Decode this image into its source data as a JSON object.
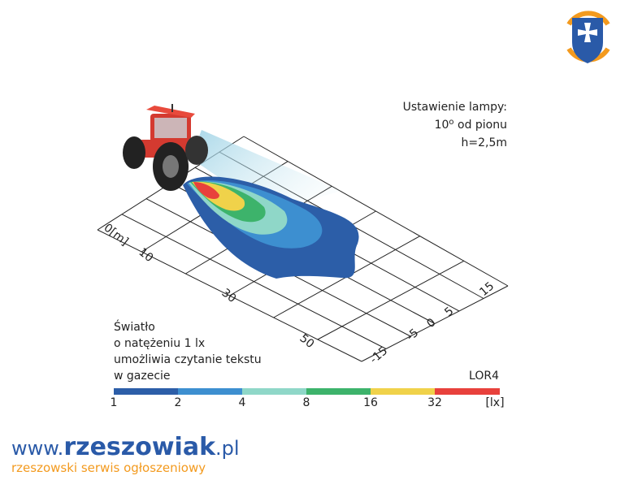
{
  "setting": {
    "title": "Ustawienie lampy:",
    "angle_value": "10",
    "angle_sign": "o",
    "angle_rest": " od pionu",
    "height": "h=2,5m"
  },
  "distance_axis": {
    "labels": [
      "0[m]",
      "10",
      "30",
      "50"
    ]
  },
  "lateral_axis": {
    "labels": [
      "15",
      "5",
      "0",
      "-5",
      "-15"
    ]
  },
  "note": {
    "lines": [
      "Światło",
      "o natężeniu 1 lx",
      "umożliwia czytanie tekstu",
      "w gazecie"
    ]
  },
  "model": "LOR4",
  "scale": {
    "labels": [
      "1",
      "2",
      "4",
      "8",
      "16",
      "32"
    ],
    "unit": "[lx]"
  },
  "footer": {
    "www": "www.",
    "brand": "rzeszowiak",
    "tld": ".pl",
    "tagline": "rzeszowski serwis ogłoszeniowy"
  }
}
